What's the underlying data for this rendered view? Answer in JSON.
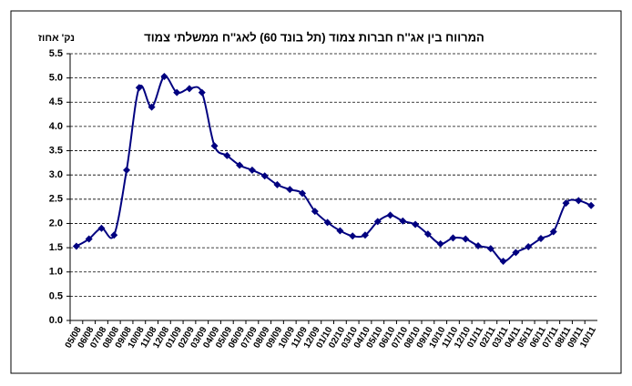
{
  "chart_data": {
    "type": "line",
    "title": "המרווח בין אג''ח חברות צמוד (תל בונד 60) לאג''ח ממשלתי צמוד",
    "y_label": "נק' אחוז",
    "categories": [
      "05/08",
      "06/08",
      "07/08",
      "08/08",
      "09/08",
      "10/08",
      "11/08",
      "12/08",
      "01/09",
      "02/09",
      "03/09",
      "04/09",
      "05/09",
      "06/09",
      "07/09",
      "08/09",
      "09/09",
      "10/09",
      "11/09",
      "12/09",
      "01/10",
      "02/10",
      "03/10",
      "04/10",
      "05/10",
      "06/10",
      "07/10",
      "08/10",
      "09/10",
      "10/10",
      "11/10",
      "12/10",
      "01/11",
      "02/11",
      "03/11",
      "04/11",
      "05/11",
      "06/11",
      "07/11",
      "08/11",
      "09/11",
      "10/11"
    ],
    "series": [
      {
        "color": "#000080",
        "values": [
          1.53,
          1.68,
          1.9,
          1.76,
          3.1,
          4.8,
          4.4,
          5.03,
          4.7,
          4.78,
          4.7,
          3.6,
          3.4,
          3.2,
          3.1,
          2.98,
          2.8,
          2.7,
          2.62,
          2.25,
          2.02,
          1.85,
          1.74,
          1.76,
          2.04,
          2.17,
          2.05,
          1.98,
          1.78,
          1.58,
          1.7,
          1.68,
          1.54,
          1.48,
          1.22,
          1.4,
          1.52,
          1.69,
          1.83,
          2.42,
          2.47,
          2.37
        ]
      }
    ],
    "ylim": [
      0,
      5.5
    ],
    "yticks": [
      {
        "value": 0,
        "label": "0.0"
      },
      0.5,
      {
        "value": 1,
        "label": "1.0"
      },
      1.5,
      {
        "value": 2,
        "label": "2.0"
      },
      2.5,
      {
        "value": 3,
        "label": "3.0"
      },
      3.5,
      {
        "value": 4,
        "label": "4.0"
      },
      4.5,
      {
        "value": 5,
        "label": "5.0"
      },
      5.5
    ],
    "grid": true
  }
}
